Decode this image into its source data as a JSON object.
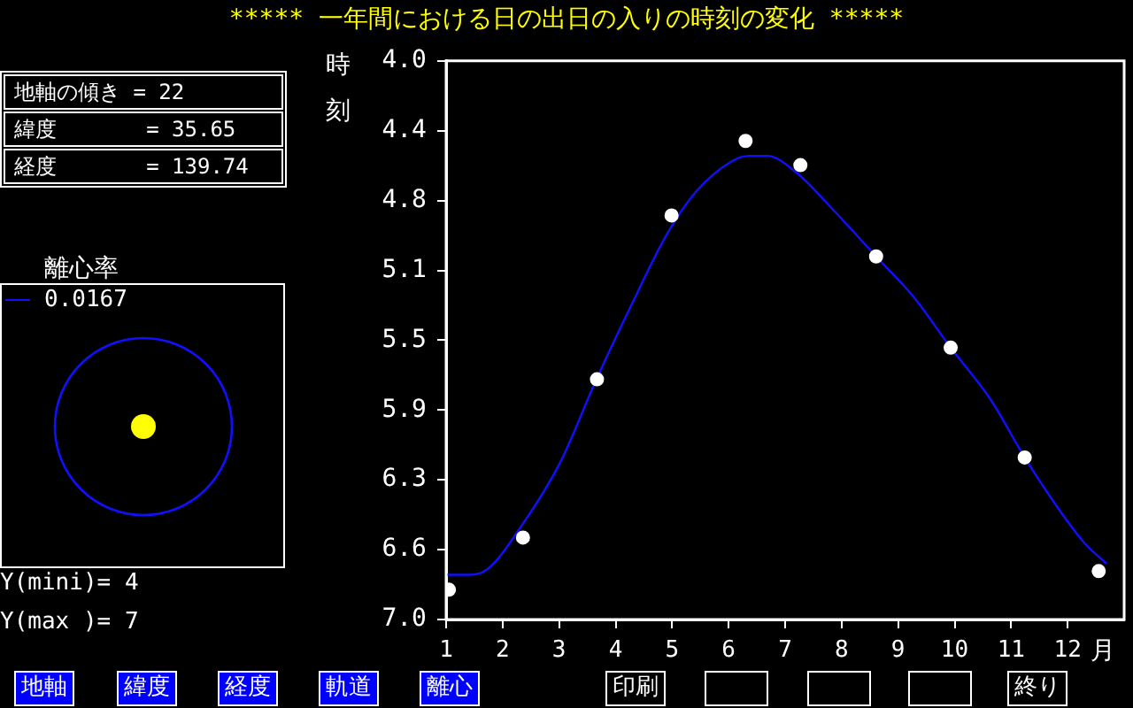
{
  "chart_data": {
    "type": "line",
    "title": "***** 一年間における日の出日の入りの時刻の変化 *****",
    "ylabel": "時刻",
    "xlabel": "月",
    "legend_title": "離心率",
    "legend": "left",
    "xlim": [
      1,
      13
    ],
    "xticks": [
      1,
      2,
      3,
      4,
      5,
      6,
      7,
      8,
      9,
      10,
      11,
      12
    ],
    "ylim": [
      7,
      4
    ],
    "yticks": [
      {
        "value": 4,
        "label": "4.0"
      },
      {
        "value": 4.375,
        "label": "4.4"
      },
      {
        "value": 4.75,
        "label": "4.8"
      },
      {
        "value": 5.125,
        "label": "5.1"
      },
      {
        "value": 5.5,
        "label": "5.5"
      },
      {
        "value": 5.875,
        "label": "5.9"
      },
      {
        "value": 6.25,
        "label": "6.3"
      },
      {
        "value": 6.625,
        "label": "6.6"
      },
      {
        "value": 7,
        "label": "7.0"
      }
    ],
    "grid": false,
    "series": [
      {
        "type": "scatter",
        "color": "#ffffff",
        "marker": "circle",
        "x": [
          1.05,
          2.36,
          3.67,
          4.99,
          6.3,
          7.27,
          8.61,
          9.93,
          11.24,
          12.55
        ],
        "values": [
          6.84,
          6.56,
          5.71,
          4.83,
          4.43,
          4.56,
          5.05,
          5.54,
          6.13,
          6.74
        ]
      },
      {
        "name": "0.0167",
        "color": "#1010ff",
        "marker": "none",
        "x": [
          1.0,
          1.36,
          1.73,
          2.35,
          3.03,
          3.66,
          4.28,
          4.91,
          5.43,
          6.05,
          6.36,
          6.68,
          7.2,
          7.82,
          8.61,
          9.28,
          9.93,
          10.64,
          11.24,
          11.78,
          12.3,
          12.69
        ],
        "values": [
          6.76,
          6.76,
          6.73,
          6.49,
          6.15,
          5.71,
          5.31,
          4.93,
          4.7,
          4.54,
          4.51,
          4.51,
          4.6,
          4.79,
          5.05,
          5.27,
          5.54,
          5.82,
          6.13,
          6.38,
          6.59,
          6.7
        ]
      }
    ],
    "annotations": [
      "地軸の傾き = 22",
      "緯度       = 35.65",
      "経度       = 139.74",
      "Y(mini)= 4",
      "Y(max )= 7",
      "地軸",
      "緯度",
      "経度",
      "軌道",
      "離心",
      "印刷",
      "終り"
    ]
  }
}
